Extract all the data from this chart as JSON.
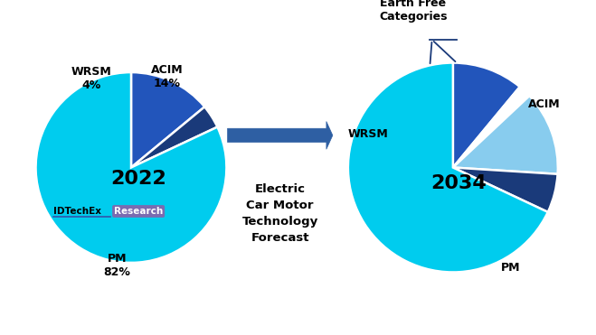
{
  "pie1_order": [
    14,
    4,
    82
  ],
  "pie1_colors": [
    "#2255BB",
    "#1A3A7A",
    "#00CCEE"
  ],
  "pie1_startangle": 90,
  "pie1_year": "2022",
  "pie2_order": [
    11,
    2,
    13,
    6,
    68
  ],
  "pie2_colors": [
    "#2255BB",
    "#FFFFFF",
    "#88CCEE",
    "#1A3A7A",
    "#00CCEE"
  ],
  "pie2_startangle": 90,
  "pie2_year": "2034",
  "arrow_color": "#2E5FA3",
  "arrow_border": "#1A3A7A",
  "center_text": "Electric\nCar Motor\nTechnology\nForecast",
  "idtechex_color": "#000000",
  "research_bg": "#7B6BB0",
  "research_text_color": "#FFFFFF",
  "label_color": "#000000",
  "year_color": "#000000",
  "bg_color": "#FFFFFF",
  "bracket_color": "#1A3A7A",
  "wrsm_label_2022": "WRSM\n4%",
  "acim_label_2022": "ACIM\n14%",
  "pm_label_2022": "PM\n82%",
  "acim_label_2034": "ACIM",
  "wrsm_label_2034": "WRSM",
  "pm_label_2034": "PM",
  "other_label_2034": "Other Rare\nEarth Free\nCategories"
}
